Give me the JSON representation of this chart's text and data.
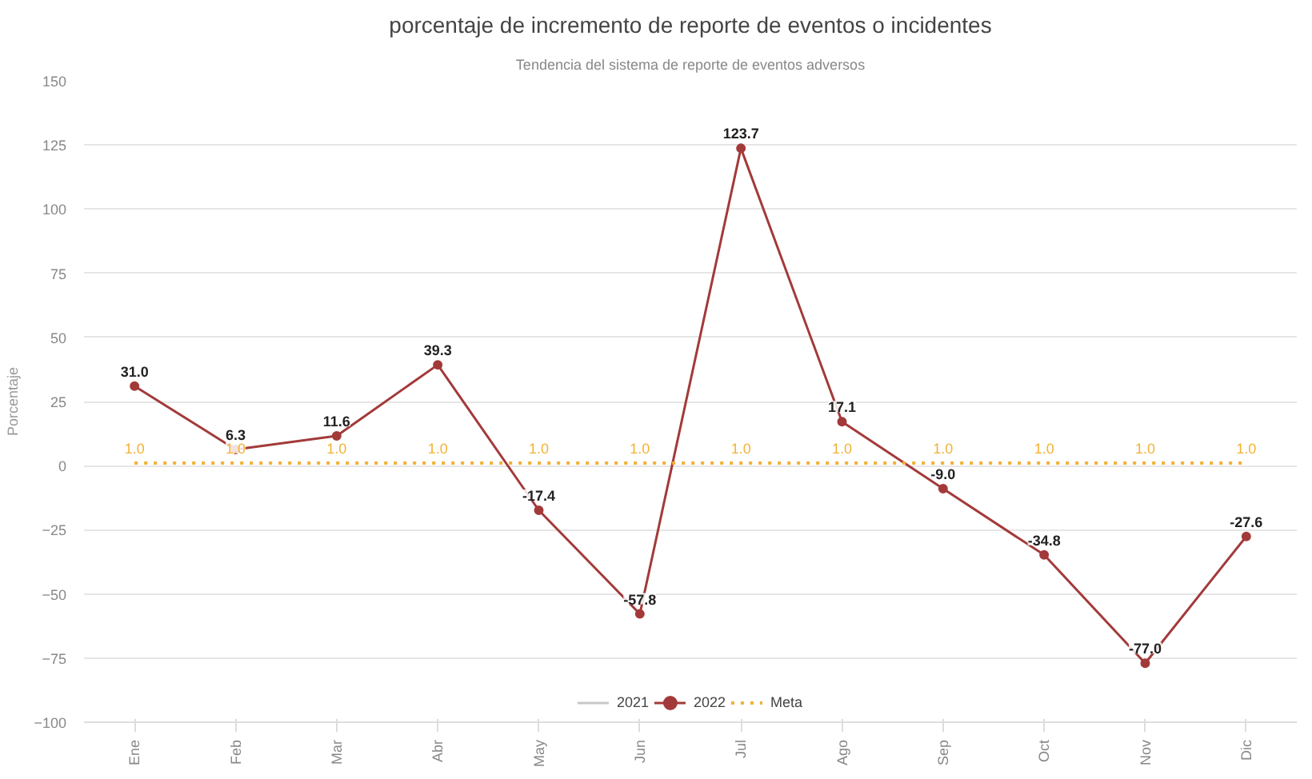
{
  "chart_data": {
    "type": "line",
    "title": "porcentaje de incremento de reporte de eventos o incidentes",
    "subtitle": "Tendencia del sistema de reporte de eventos adversos",
    "ylabel": "Porcentaje",
    "categories": [
      "Ene",
      "Feb",
      "Mar",
      "Abr",
      "May",
      "Jun",
      "Jul",
      "Ago",
      "Sep",
      "Oct",
      "Nov",
      "Dic"
    ],
    "series": [
      {
        "name": "2021",
        "color": "#c8c8c8",
        "values": [
          null,
          null,
          null,
          null,
          null,
          null,
          null,
          null,
          null,
          null,
          null,
          null
        ]
      },
      {
        "name": "2022",
        "color": "#a33a3a",
        "marker": "circle",
        "values": [
          31.0,
          6.3,
          11.6,
          39.3,
          -17.4,
          -57.8,
          123.7,
          17.1,
          -9.0,
          -34.8,
          -77.0,
          -27.6
        ],
        "value_labels": [
          "31.0",
          "6.3",
          "11.6",
          "39.3",
          "-17.4",
          "-57.8",
          "123.7",
          "17.1",
          "-9.0",
          "-34.8",
          "-77.0",
          "-27.6"
        ]
      },
      {
        "name": "Meta",
        "color": "#f2b134",
        "marker": "none",
        "line_style": "dotted",
        "values": [
          1.0,
          1.0,
          1.0,
          1.0,
          1.0,
          1.0,
          1.0,
          1.0,
          1.0,
          1.0,
          1.0,
          1.0
        ],
        "value_labels": [
          "1.0",
          "1.0",
          "1.0",
          "1.0",
          "1.0",
          "1.0",
          "1.0",
          "1.0",
          "1.0",
          "1.0",
          "1.0",
          "1.0"
        ]
      }
    ],
    "ylim": [
      -100,
      150
    ],
    "yticks": [
      -100,
      -75,
      -50,
      -25,
      0,
      25,
      50,
      75,
      100,
      125,
      150
    ],
    "grid": "y",
    "legend": "bottom"
  }
}
